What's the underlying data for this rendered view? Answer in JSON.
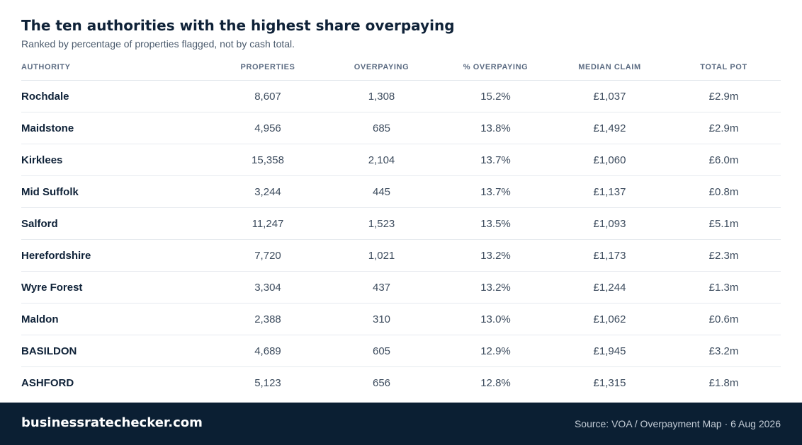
{
  "header": {
    "title": "The ten authorities with the highest share overpaying",
    "subtitle": "Ranked by percentage of properties flagged, not by cash total."
  },
  "table": {
    "columns": [
      "AUTHORITY",
      "PROPERTIES",
      "OVERPAYING",
      "% OVERPAYING",
      "MEDIAN CLAIM",
      "TOTAL POT"
    ],
    "rows": [
      [
        "Rochdale",
        "8,607",
        "1,308",
        "15.2%",
        "£1,037",
        "£2.9m"
      ],
      [
        "Maidstone",
        "4,956",
        "685",
        "13.8%",
        "£1,492",
        "£2.9m"
      ],
      [
        "Kirklees",
        "15,358",
        "2,104",
        "13.7%",
        "£1,060",
        "£6.0m"
      ],
      [
        "Mid Suffolk",
        "3,244",
        "445",
        "13.7%",
        "£1,137",
        "£0.8m"
      ],
      [
        "Salford",
        "11,247",
        "1,523",
        "13.5%",
        "£1,093",
        "£5.1m"
      ],
      [
        "Herefordshire",
        "7,720",
        "1,021",
        "13.2%",
        "£1,173",
        "£2.3m"
      ],
      [
        "Wyre Forest",
        "3,304",
        "437",
        "13.2%",
        "£1,244",
        "£1.3m"
      ],
      [
        "Maldon",
        "2,388",
        "310",
        "13.0%",
        "£1,062",
        "£0.6m"
      ],
      [
        "BASILDON",
        "4,689",
        "605",
        "12.9%",
        "£1,945",
        "£3.2m"
      ],
      [
        "ASHFORD",
        "5,123",
        "656",
        "12.8%",
        "£1,315",
        "£1.8m"
      ]
    ]
  },
  "footer": {
    "brand": "businessratechecker.com",
    "source": "Source: VOA / Overpayment Map · 6 Aug 2026"
  },
  "colors": {
    "footer_background": "#0b1f33",
    "title_text": "#0f2238",
    "header_text": "#5b6b82"
  }
}
